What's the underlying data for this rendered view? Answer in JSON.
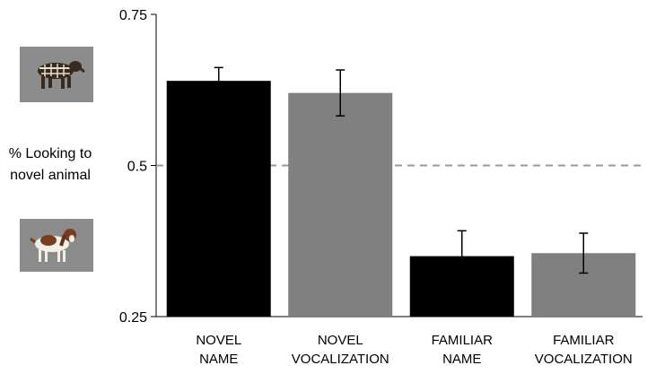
{
  "chart_data": {
    "type": "bar",
    "ylabel_lines": [
      "% Looking to",
      "novel animal"
    ],
    "categories": [
      [
        "NOVEL",
        "NAME"
      ],
      [
        "NOVEL",
        "VOCALIZATION"
      ],
      [
        "FAMILIAR",
        "NAME"
      ],
      [
        "FAMILIAR",
        "VOCALIZATION"
      ]
    ],
    "values": [
      0.64,
      0.62,
      0.35,
      0.355
    ],
    "error": [
      0.022,
      0.038,
      0.042,
      0.033
    ],
    "colors": [
      "#000000",
      "#808080",
      "#000000",
      "#808080"
    ],
    "ylim": [
      0.25,
      0.75
    ],
    "yticks": [
      0.25,
      0.5,
      0.75
    ],
    "ytick_labels": [
      "0.25",
      "0.5",
      "0.75"
    ],
    "reference_line": 0.5,
    "reference_line_color": "#999999",
    "grid": false,
    "images": {
      "top": "tapir-photo",
      "bottom": "spaniel-dog-photo"
    }
  }
}
